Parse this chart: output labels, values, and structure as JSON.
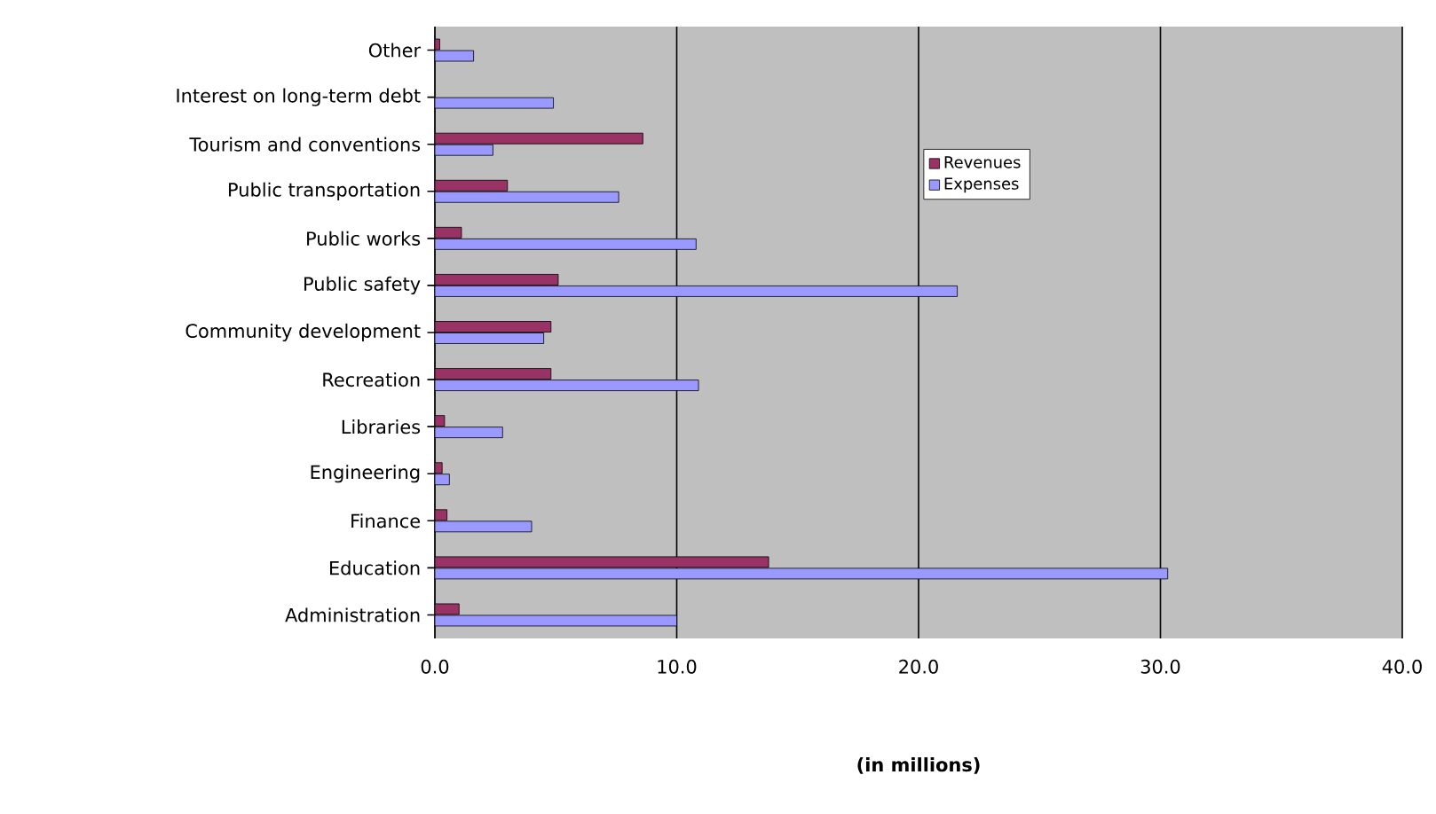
{
  "chart_data": {
    "type": "bar",
    "orientation": "horizontal",
    "xlabel": "(in millions)",
    "categories": [
      "Other",
      "Interest on long-term debt",
      "Tourism and conventions",
      "Public transportation",
      "Public works",
      "Public safety",
      "Community development",
      "Recreation",
      "Libraries",
      "Engineering",
      "Finance",
      "Education",
      "Administration"
    ],
    "series": [
      {
        "name": "Revenues",
        "color": "#993366",
        "values": [
          0.2,
          null,
          8.6,
          3.0,
          1.1,
          5.1,
          4.8,
          4.8,
          0.4,
          0.3,
          0.5,
          13.8,
          1.0
        ]
      },
      {
        "name": "Expenses",
        "color": "#9999ff",
        "values": [
          1.6,
          4.9,
          2.4,
          7.6,
          10.8,
          21.6,
          4.5,
          10.9,
          2.8,
          0.6,
          4.0,
          30.3,
          10.0
        ]
      }
    ],
    "xlim": [
      0,
      40
    ],
    "xticks": [
      {
        "value": 0,
        "label": "0.0"
      },
      {
        "value": 10,
        "label": "10.0"
      },
      {
        "value": 20,
        "label": "20.0"
      },
      {
        "value": 30,
        "label": "30.0"
      },
      {
        "value": 40,
        "label": "40.0"
      }
    ],
    "grid": "x",
    "legend": "right"
  }
}
